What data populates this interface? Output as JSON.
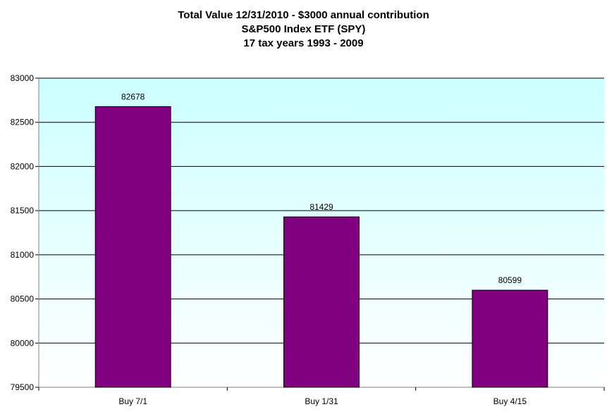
{
  "chart_data": {
    "type": "bar",
    "title_lines": [
      "Total Value 12/31/2010 - $3000 annual contribution",
      "S&P500 Index ETF (SPY)",
      "17 tax years 1993 - 2009"
    ],
    "categories": [
      "Buy 7/1",
      "Buy 1/31",
      "Buy 4/15"
    ],
    "values": [
      82678,
      81429,
      80599
    ],
    "data_labels": [
      "82678",
      "81429",
      "80599"
    ],
    "ylim": [
      79500,
      83000
    ],
    "yticks": [
      79500,
      80000,
      80500,
      81000,
      81500,
      82000,
      82500,
      83000
    ],
    "ytick_labels": [
      "79500",
      "80000",
      "80500",
      "81000",
      "81500",
      "82000",
      "82500",
      "83000"
    ],
    "grid": true,
    "legend": "none",
    "colors": {
      "bar": "#800080",
      "plot_bg_top": "#ccffff",
      "plot_bg_bottom": "#ffffff",
      "gridline": "#000000"
    }
  }
}
